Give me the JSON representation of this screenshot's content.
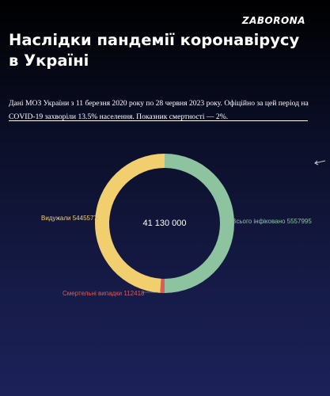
{
  "brand": "ZABORONA",
  "title": "Наслідки пандемії коронавірусу в Україні",
  "description": "Дані МОЗ України з 11 березня 2020 року по 28 червня 2023 року. Офіційно за цей період на COVID-19 захворіли 13.5% населення. Показник смертності — 2%.",
  "colors": {
    "infected": "#8ec3a0",
    "recovered": "#f1cf6e",
    "deaths": "#e05a5a"
  },
  "chart_data": {
    "type": "pie",
    "center_label": "41 130 000",
    "slices": [
      {
        "label": "Всього інфіковано 5557995",
        "value": 5557995,
        "color": "#8ec3a0"
      },
      {
        "label": "Смертельні випадки 112418",
        "value": 112418,
        "color": "#e05a5a"
      },
      {
        "label": "Видужали 5445577",
        "value": 5445577,
        "color": "#f1cf6e"
      }
    ]
  }
}
